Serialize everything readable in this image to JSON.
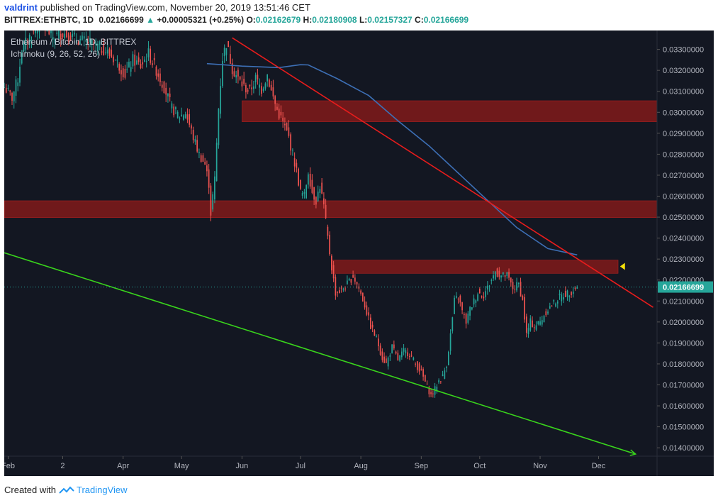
{
  "header": {
    "author": "valdrint",
    "published_text": "published on TradingView.com, November 20, 2019 13:51:46 CET",
    "symbol": "BITTREX:ETHBTC, 1D",
    "last": "0.02166699",
    "change": "+0.00005321 (+0.25%)",
    "o_label": "O:",
    "o": "0.02162679",
    "h_label": "H:",
    "h": "0.02180908",
    "l_label": "L:",
    "l": "0.02157327",
    "c_label": "C:",
    "c": "0.02166699"
  },
  "legend": {
    "title": "Ethereum / Bitcoin, 1D, BITTREX",
    "indicator": "Ichimoku (9, 26, 52, 26)"
  },
  "footer": {
    "created_with": "Created with",
    "brand": "TradingView"
  },
  "colors": {
    "background": "#131722",
    "up": "#26a69a",
    "down": "#ef5350",
    "zone": "#8b1a1a",
    "resistance_line": "#e81c1c",
    "support_line": "#39d41c",
    "ichimoku_line": "#3d6fb5",
    "price_label": "#26a69a"
  },
  "chart_data": {
    "type": "candlestick",
    "title": "Ethereum / Bitcoin, 1D, BITTREX",
    "xlabel": "",
    "ylabel": "",
    "x_ticks": [
      "Feb",
      "2",
      "Apr",
      "May",
      "Jun",
      "Jul",
      "Aug",
      "Sep",
      "Oct",
      "Nov",
      "Dec"
    ],
    "x_tick_dates": [
      "2019-02-01",
      "2019-03-01",
      "2019-04-01",
      "2019-05-01",
      "2019-06-01",
      "2019-07-01",
      "2019-08-01",
      "2019-09-01",
      "2019-10-01",
      "2019-11-01",
      "2019-12-01"
    ],
    "y_ticks": [
      "0.03300000",
      "0.03200000",
      "0.03100000",
      "0.03000000",
      "0.02900000",
      "0.02800000",
      "0.02700000",
      "0.02600000",
      "0.02500000",
      "0.02400000",
      "0.02300000",
      "0.02200000",
      "0.02100000",
      "0.02000000",
      "0.01900000",
      "0.01800000",
      "0.01700000",
      "0.01600000",
      "0.01500000",
      "0.01400000"
    ],
    "ylim": [
      0.0136,
      0.0339
    ],
    "xlim": [
      "2019-01-30",
      "2019-12-31"
    ],
    "last_price_label": "0.02166699",
    "last_price": 0.02166699,
    "grid": false,
    "price_path": [
      [
        "2019-01-30",
        0.0312
      ],
      [
        "2019-02-03",
        0.0307
      ],
      [
        "2019-02-06",
        0.0316
      ],
      [
        "2019-02-08",
        0.033
      ],
      [
        "2019-02-12",
        0.0336
      ],
      [
        "2019-02-18",
        0.0342
      ],
      [
        "2019-02-24",
        0.0336
      ],
      [
        "2019-03-01",
        0.0338
      ],
      [
        "2019-03-08",
        0.0335
      ],
      [
        "2019-03-15",
        0.0333
      ],
      [
        "2019-03-22",
        0.033
      ],
      [
        "2019-03-28",
        0.0325
      ],
      [
        "2019-04-02",
        0.0318
      ],
      [
        "2019-04-06",
        0.0325
      ],
      [
        "2019-04-10",
        0.0322
      ],
      [
        "2019-04-14",
        0.0328
      ],
      [
        "2019-04-18",
        0.032
      ],
      [
        "2019-04-22",
        0.0312
      ],
      [
        "2019-04-26",
        0.0302
      ],
      [
        "2019-04-30",
        0.0298
      ],
      [
        "2019-05-03",
        0.03
      ],
      [
        "2019-05-07",
        0.0288
      ],
      [
        "2019-05-10",
        0.028
      ],
      [
        "2019-05-13",
        0.0275
      ],
      [
        "2019-05-15",
        0.0266
      ],
      [
        "2019-05-16",
        0.0252
      ],
      [
        "2019-05-18",
        0.0268
      ],
      [
        "2019-05-20",
        0.0302
      ],
      [
        "2019-05-22",
        0.0326
      ],
      [
        "2019-05-24",
        0.0333
      ],
      [
        "2019-05-27",
        0.0321
      ],
      [
        "2019-05-30",
        0.0316
      ],
      [
        "2019-06-02",
        0.0312
      ],
      [
        "2019-06-05",
        0.031
      ],
      [
        "2019-06-08",
        0.0316
      ],
      [
        "2019-06-11",
        0.0311
      ],
      [
        "2019-06-14",
        0.0318
      ],
      [
        "2019-06-16",
        0.031
      ],
      [
        "2019-06-19",
        0.0301
      ],
      [
        "2019-06-22",
        0.0295
      ],
      [
        "2019-06-25",
        0.0288
      ],
      [
        "2019-06-27",
        0.028
      ],
      [
        "2019-06-29",
        0.0272
      ],
      [
        "2019-07-01",
        0.0262
      ],
      [
        "2019-07-03",
        0.026
      ],
      [
        "2019-07-05",
        0.0272
      ],
      [
        "2019-07-07",
        0.0262
      ],
      [
        "2019-07-09",
        0.0258
      ],
      [
        "2019-07-11",
        0.0265
      ],
      [
        "2019-07-13",
        0.0255
      ],
      [
        "2019-07-15",
        0.024
      ],
      [
        "2019-07-17",
        0.0226
      ],
      [
        "2019-07-19",
        0.0214
      ],
      [
        "2019-07-22",
        0.0215
      ],
      [
        "2019-07-25",
        0.0218
      ],
      [
        "2019-07-28",
        0.0222
      ],
      [
        "2019-07-31",
        0.0216
      ],
      [
        "2019-08-03",
        0.0208
      ],
      [
        "2019-08-06",
        0.0198
      ],
      [
        "2019-08-09",
        0.0192
      ],
      [
        "2019-08-12",
        0.0183
      ],
      [
        "2019-08-14",
        0.018
      ],
      [
        "2019-08-17",
        0.0188
      ],
      [
        "2019-08-20",
        0.0182
      ],
      [
        "2019-08-23",
        0.0186
      ],
      [
        "2019-08-26",
        0.0185
      ],
      [
        "2019-08-29",
        0.018
      ],
      [
        "2019-09-01",
        0.0176
      ],
      [
        "2019-09-04",
        0.0169
      ],
      [
        "2019-09-06",
        0.0165
      ],
      [
        "2019-09-08",
        0.0168
      ],
      [
        "2019-09-10",
        0.0172
      ],
      [
        "2019-09-12",
        0.0174
      ],
      [
        "2019-09-14",
        0.018
      ],
      [
        "2019-09-16",
        0.0194
      ],
      [
        "2019-09-18",
        0.021
      ],
      [
        "2019-09-20",
        0.0212
      ],
      [
        "2019-09-22",
        0.0205
      ],
      [
        "2019-09-24",
        0.02
      ],
      [
        "2019-09-26",
        0.0206
      ],
      [
        "2019-09-28",
        0.021
      ],
      [
        "2019-09-30",
        0.0214
      ],
      [
        "2019-10-03",
        0.0213
      ],
      [
        "2019-10-06",
        0.0218
      ],
      [
        "2019-10-09",
        0.0224
      ],
      [
        "2019-10-12",
        0.0222
      ],
      [
        "2019-10-15",
        0.0222
      ],
      [
        "2019-10-18",
        0.0216
      ],
      [
        "2019-10-21",
        0.0218
      ],
      [
        "2019-10-23",
        0.021
      ],
      [
        "2019-10-25",
        0.0194
      ],
      [
        "2019-10-27",
        0.02
      ],
      [
        "2019-10-29",
        0.0198
      ],
      [
        "2019-11-01",
        0.02
      ],
      [
        "2019-11-04",
        0.0205
      ],
      [
        "2019-11-07",
        0.0208
      ],
      [
        "2019-11-10",
        0.0211
      ],
      [
        "2019-11-13",
        0.0213
      ],
      [
        "2019-11-16",
        0.0214
      ],
      [
        "2019-11-20",
        0.021667
      ]
    ],
    "ichimoku_line": [
      [
        "2019-05-14",
        0.03232
      ],
      [
        "2019-06-01",
        0.0322
      ],
      [
        "2019-06-20",
        0.03213
      ],
      [
        "2019-07-01",
        0.03227
      ],
      [
        "2019-07-05",
        0.03226
      ],
      [
        "2019-07-20",
        0.0316
      ],
      [
        "2019-08-05",
        0.0308
      ],
      [
        "2019-08-20",
        0.0296
      ],
      [
        "2019-09-05",
        0.0284
      ],
      [
        "2019-09-20",
        0.0271
      ],
      [
        "2019-10-05",
        0.0258
      ],
      [
        "2019-10-20",
        0.0245
      ],
      [
        "2019-11-05",
        0.0235
      ],
      [
        "2019-11-20",
        0.0232
      ]
    ],
    "zones": [
      {
        "x_start": "2019-06-01",
        "x_end": "2019-12-31",
        "y_from": 0.02955,
        "y_to": 0.03055
      },
      {
        "x_start": "2019-01-30",
        "x_end": "2019-12-31",
        "y_from": 0.02498,
        "y_to": 0.02578
      },
      {
        "x_start": "2019-07-17",
        "x_end": "2019-12-11",
        "y_from": 0.02232,
        "y_to": 0.02295
      }
    ],
    "trendlines": [
      {
        "name": "resistance",
        "from": [
          "2019-05-27",
          0.03355
        ],
        "to": [
          "2019-12-29",
          0.0207
        ]
      },
      {
        "name": "support",
        "from": [
          "2019-01-30",
          0.0233
        ],
        "to": [
          "2019-12-20",
          0.0137
        ]
      }
    ],
    "marker": {
      "date": "2019-12-12",
      "price": 0.02265
    }
  }
}
